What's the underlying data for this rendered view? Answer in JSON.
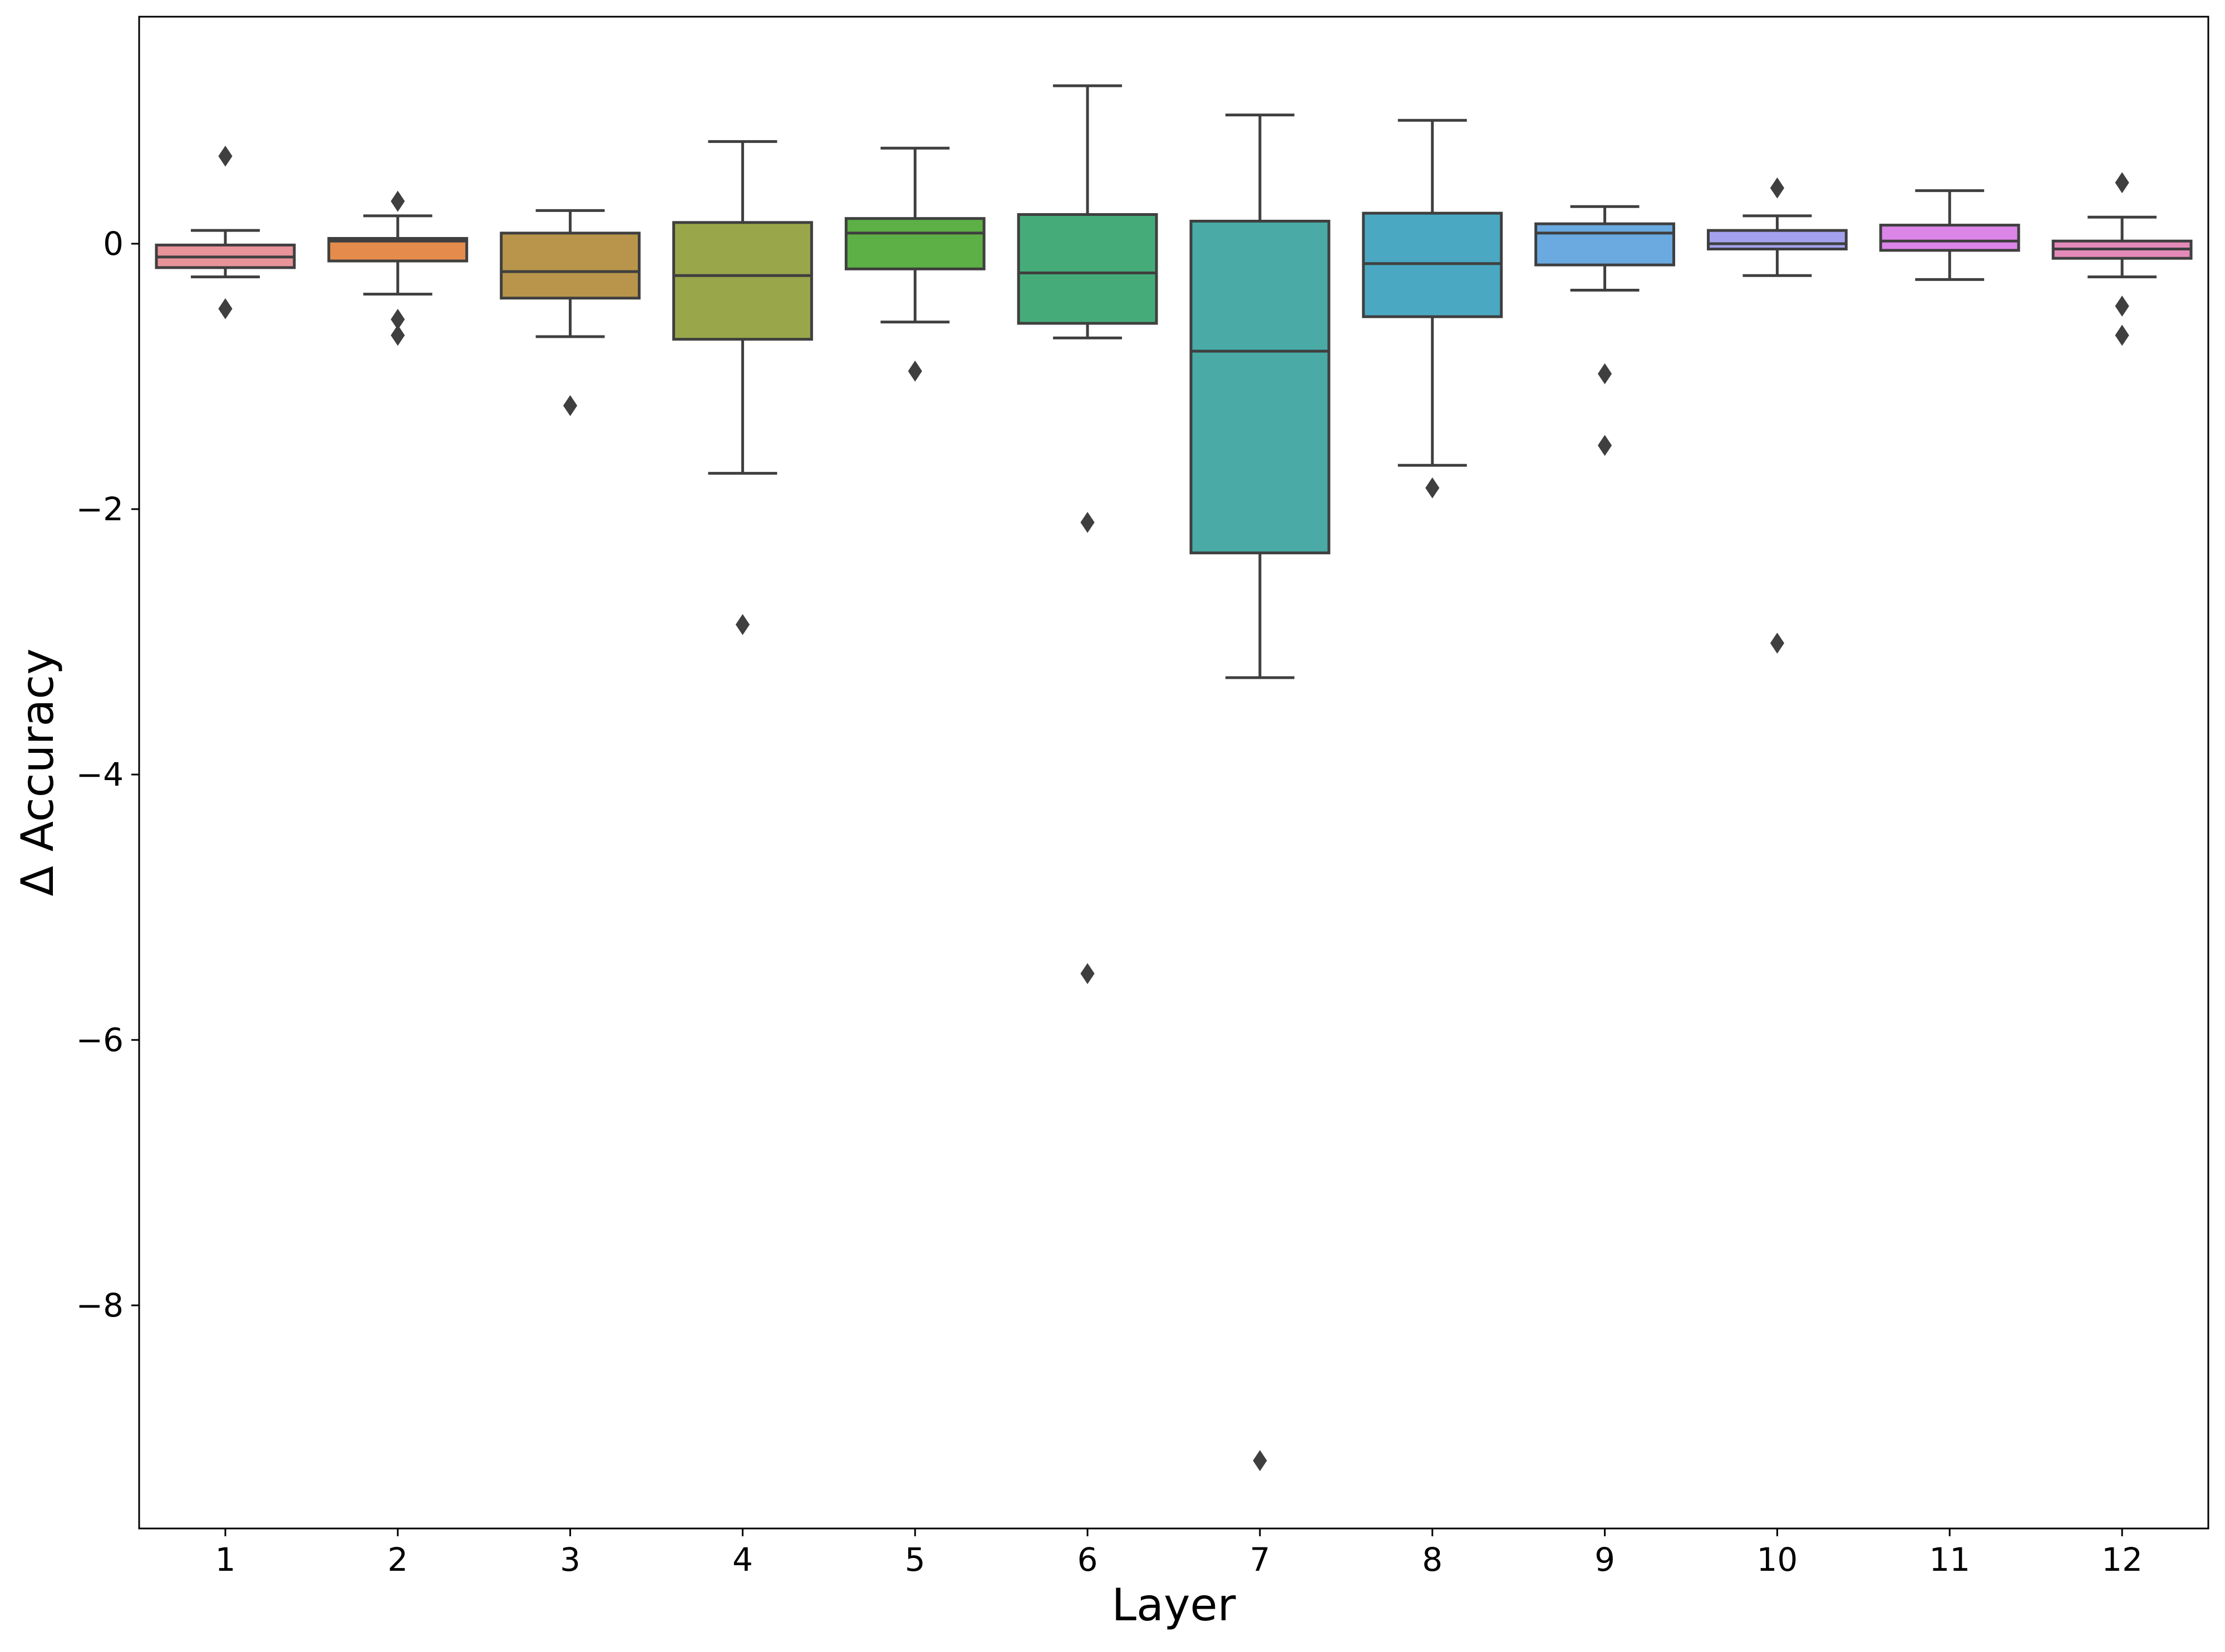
{
  "chart_data": {
    "type": "boxplot",
    "xlabel": "Layer",
    "ylabel": "Δ Accuracy",
    "ylim": [
      -9.7,
      1.7
    ],
    "yticks": [
      0,
      -2,
      -4,
      -6,
      -8
    ],
    "ytick_labels": [
      "0",
      "−2",
      "−4",
      "−6",
      "−8"
    ],
    "categories": [
      "1",
      "2",
      "3",
      "4",
      "5",
      "6",
      "7",
      "8",
      "9",
      "10",
      "11",
      "12"
    ],
    "colors": [
      "#e8929a",
      "#e58c4d",
      "#b8954a",
      "#9aa64a",
      "#5cb045",
      "#45ac79",
      "#49aaa6",
      "#4aa8c2",
      "#6aaae0",
      "#a4a2ee",
      "#dc85e9",
      "#e48ab9"
    ],
    "boxes": [
      {
        "layer": "1",
        "whislo": -0.25,
        "q1": -0.18,
        "median": -0.1,
        "q3": -0.01,
        "whishi": 0.1,
        "fliers": [
          0.66,
          -0.49
        ]
      },
      {
        "layer": "2",
        "whislo": -0.38,
        "q1": -0.13,
        "median": 0.02,
        "q3": 0.04,
        "whishi": 0.21,
        "fliers": [
          0.32,
          -0.57,
          -0.69
        ]
      },
      {
        "layer": "3",
        "whislo": -0.7,
        "q1": -0.41,
        "median": -0.21,
        "q3": 0.08,
        "whishi": 0.25,
        "fliers": [
          -1.22
        ]
      },
      {
        "layer": "4",
        "whislo": -1.73,
        "q1": -0.72,
        "median": -0.24,
        "q3": 0.16,
        "whishi": 0.77,
        "fliers": [
          -2.87
        ]
      },
      {
        "layer": "5",
        "whislo": -0.59,
        "q1": -0.19,
        "median": 0.08,
        "q3": 0.19,
        "whishi": 0.72,
        "fliers": [
          -0.96
        ]
      },
      {
        "layer": "6",
        "whislo": -0.71,
        "q1": -0.6,
        "median": -0.22,
        "q3": 0.22,
        "whishi": 1.19,
        "fliers": [
          -2.1,
          -5.5
        ]
      },
      {
        "layer": "7",
        "whislo": -3.27,
        "q1": -2.33,
        "median": -0.81,
        "q3": 0.17,
        "whishi": 0.97,
        "fliers": [
          -9.17
        ]
      },
      {
        "layer": "8",
        "whislo": -1.67,
        "q1": -0.55,
        "median": -0.15,
        "q3": 0.23,
        "whishi": 0.93,
        "fliers": [
          -1.84
        ]
      },
      {
        "layer": "9",
        "whislo": -0.35,
        "q1": -0.16,
        "median": 0.08,
        "q3": 0.15,
        "whishi": 0.28,
        "fliers": [
          -0.98,
          -1.52
        ]
      },
      {
        "layer": "10",
        "whislo": -0.24,
        "q1": -0.04,
        "median": 0.0,
        "q3": 0.1,
        "whishi": 0.21,
        "fliers": [
          0.42,
          -3.01
        ]
      },
      {
        "layer": "11",
        "whislo": -0.27,
        "q1": -0.05,
        "median": 0.02,
        "q3": 0.14,
        "whishi": 0.4,
        "fliers": []
      },
      {
        "layer": "12",
        "whislo": -0.25,
        "q1": -0.11,
        "median": -0.04,
        "q3": 0.02,
        "whishi": 0.2,
        "fliers": [
          0.46,
          -0.47,
          -0.69
        ]
      }
    ]
  }
}
